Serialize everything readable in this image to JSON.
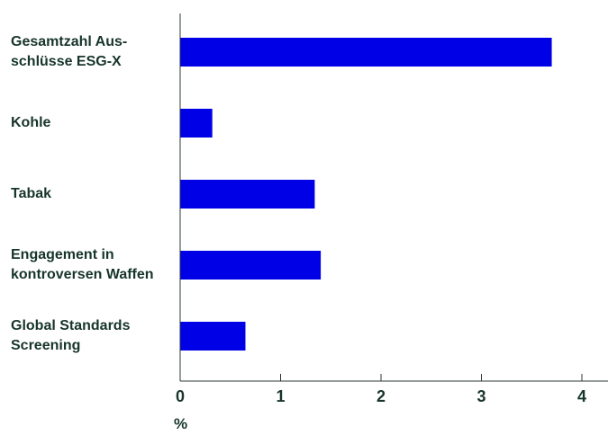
{
  "chart_data": {
    "type": "bar",
    "orientation": "horizontal",
    "categories": [
      "Gesamtzahl Aus-\nschlüsse ESG-X",
      "Kohle",
      "Tabak",
      "Engagement in\nkontroversen Waffen",
      "Global Standards\nScreening"
    ],
    "values": [
      3.7,
      0.32,
      1.34,
      1.4,
      0.65
    ],
    "xlabel": "%",
    "xlim": [
      0,
      4.1
    ],
    "xticks": [
      "0",
      "1",
      "2",
      "3",
      "4"
    ],
    "grid": false,
    "bar_color": "#0000e6",
    "text_color": "#17352b"
  }
}
